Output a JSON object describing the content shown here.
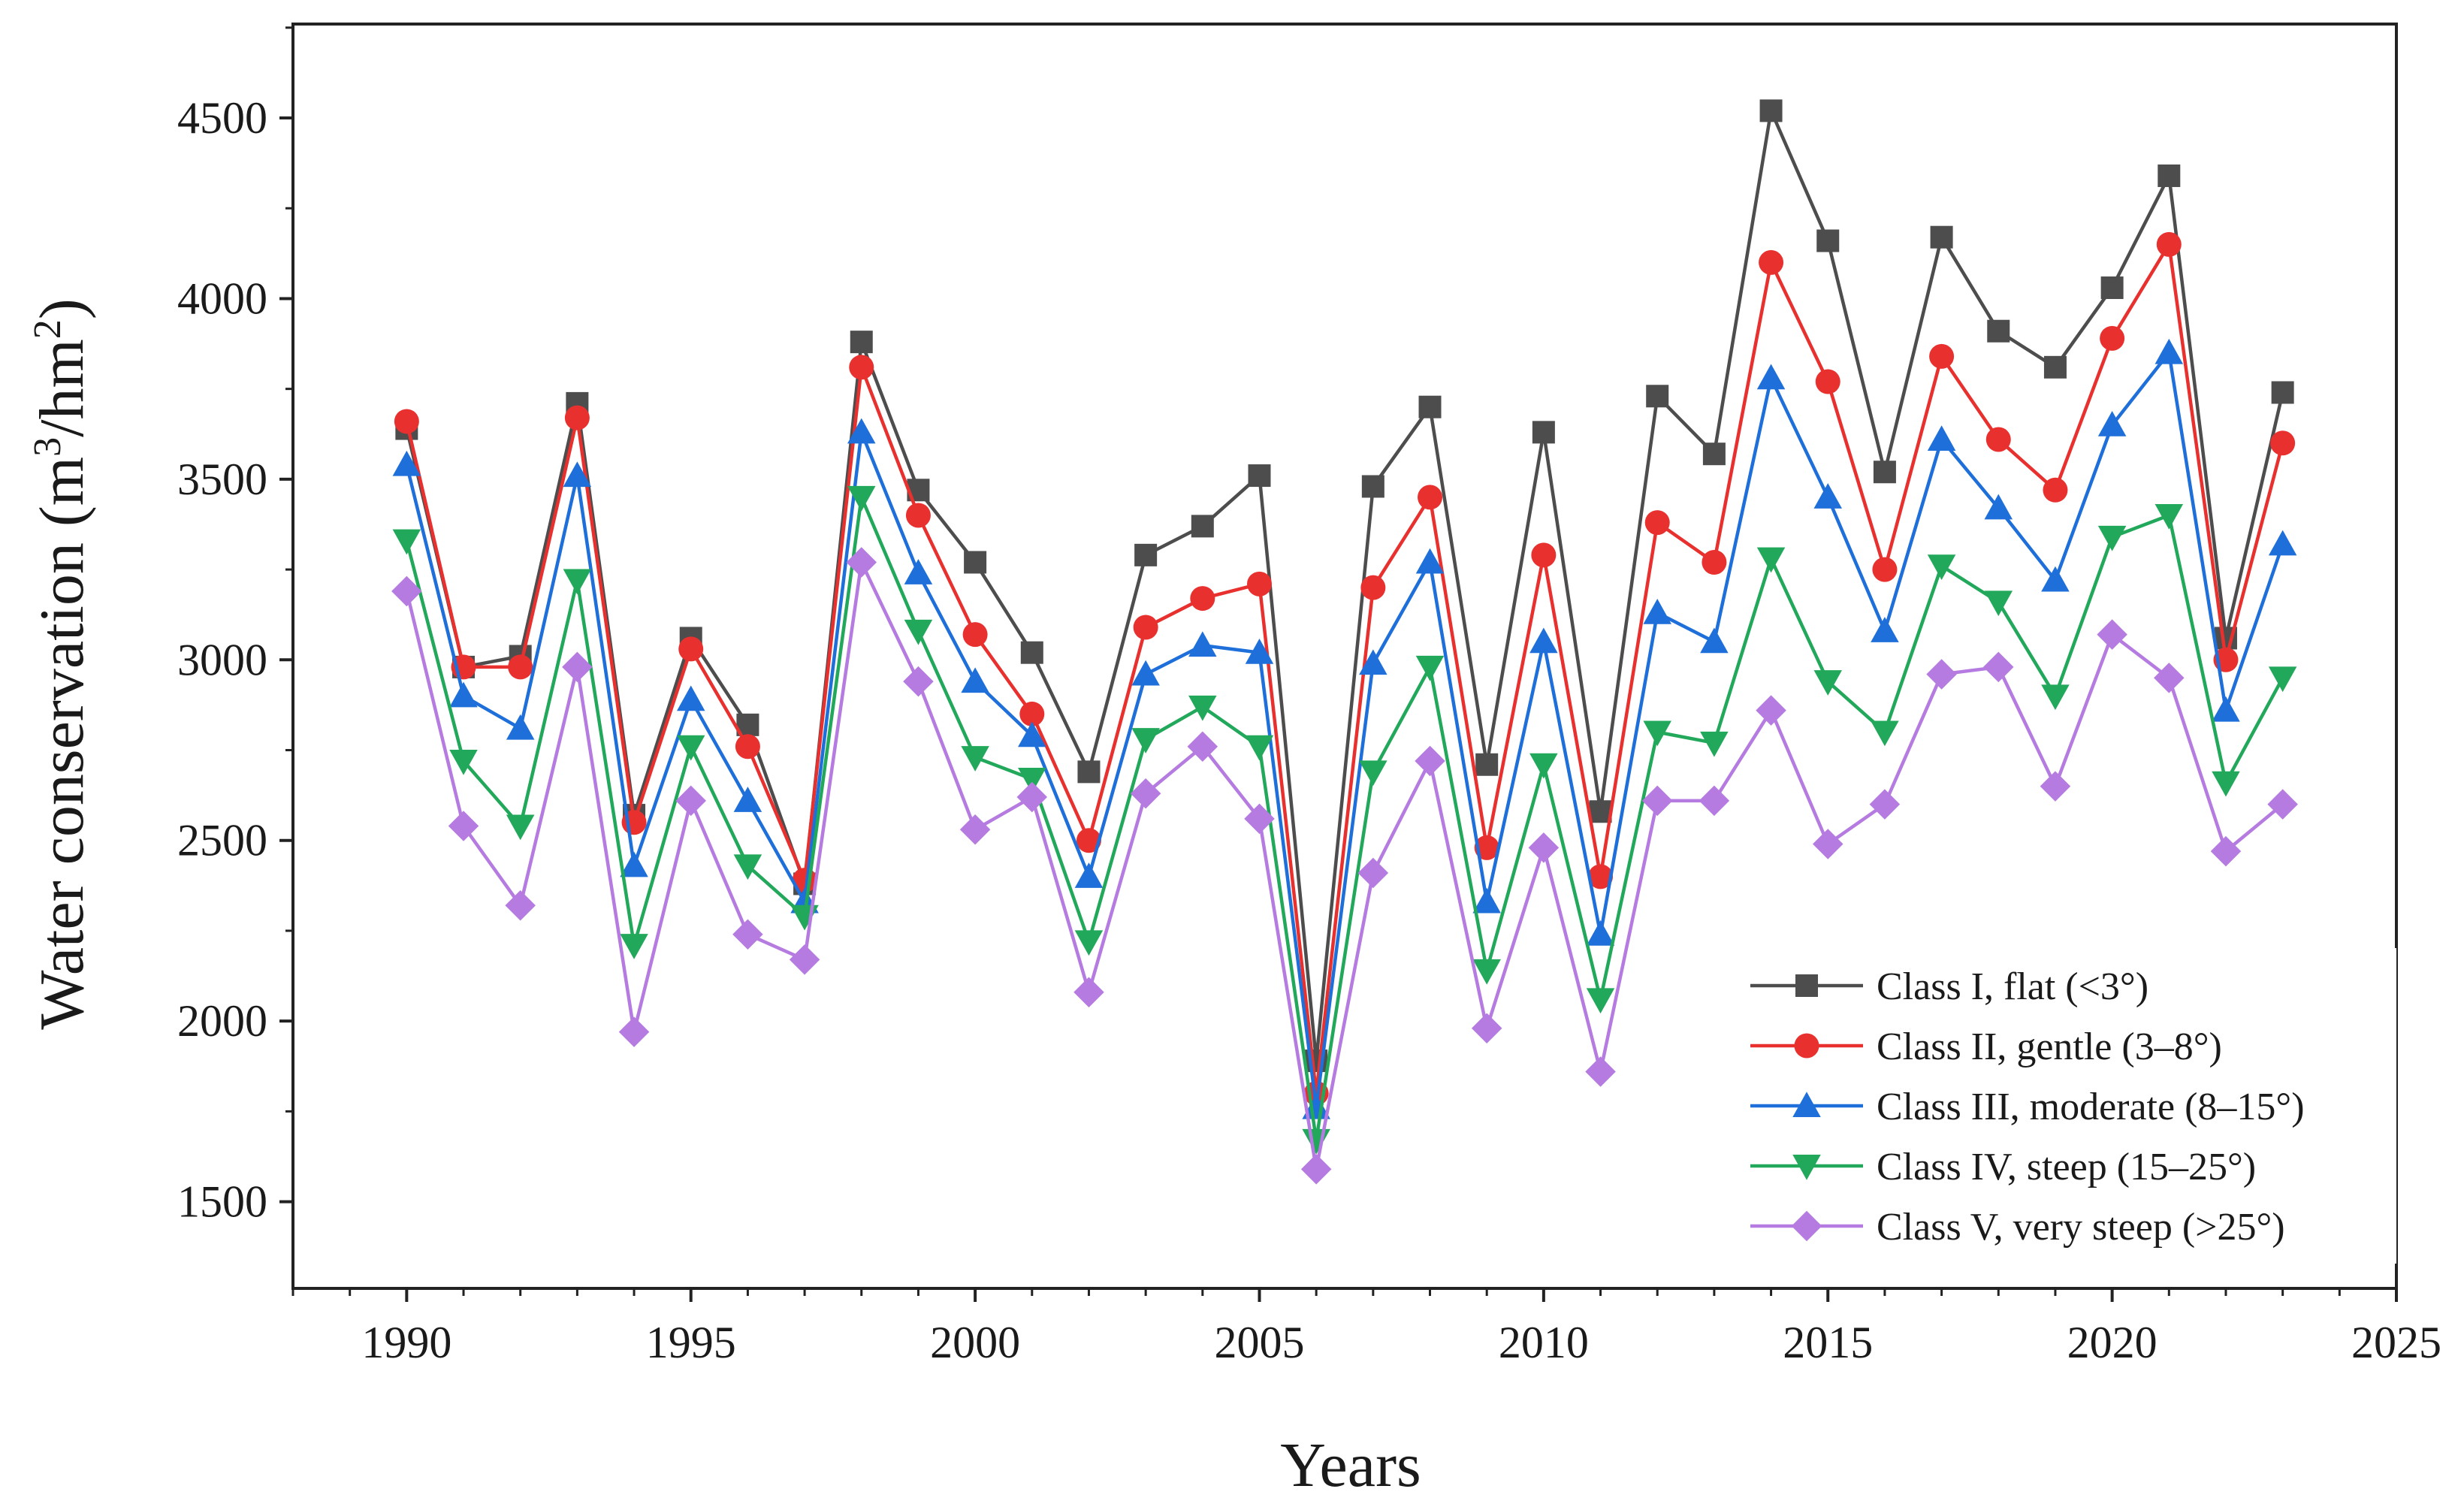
{
  "chart_data": {
    "type": "line",
    "title": "",
    "xlabel": "Years",
    "ylabel_prefix": "Water conservation (m",
    "ylabel_sup1": "3",
    "ylabel_mid": "/hm",
    "ylabel_sup2": "2",
    "ylabel_suffix": ")",
    "xlim": [
      1988,
      2025
    ],
    "ylim": [
      1260,
      4760
    ],
    "xticks": [
      1990,
      1995,
      2000,
      2005,
      2010,
      2015,
      2020,
      2025
    ],
    "yticks": [
      1500,
      2000,
      2500,
      3000,
      3500,
      4000,
      4500
    ],
    "legend_position": "bottom-right",
    "x": [
      1990,
      1991,
      1992,
      1993,
      1994,
      1995,
      1996,
      1997,
      1998,
      1999,
      2000,
      2001,
      2002,
      2003,
      2004,
      2005,
      2006,
      2007,
      2008,
      2009,
      2010,
      2011,
      2012,
      2013,
      2014,
      2015,
      2016,
      2017,
      2018,
      2019,
      2020,
      2021,
      2022,
      2023
    ],
    "series": [
      {
        "name": "Class I, flat (<3°)",
        "color": "#4d4d4d",
        "marker": "square",
        "values": [
          3640,
          2980,
          3010,
          3710,
          2570,
          3060,
          2820,
          2380,
          3880,
          3470,
          3270,
          3020,
          2690,
          3290,
          3370,
          3510,
          1890,
          3480,
          3700,
          2710,
          3630,
          2580,
          3730,
          3570,
          4520,
          4160,
          3520,
          4170,
          3910,
          3810,
          4030,
          4340,
          3060,
          3740
        ]
      },
      {
        "name": "Class II, gentle (3–8°)",
        "color": "#e8312f",
        "marker": "circle",
        "values": [
          3660,
          2980,
          2980,
          3670,
          2550,
          3030,
          2760,
          2390,
          3810,
          3400,
          3070,
          2850,
          2500,
          3090,
          3170,
          3210,
          1800,
          3200,
          3450,
          2480,
          3290,
          2400,
          3380,
          3270,
          4100,
          3770,
          3250,
          3840,
          3610,
          3470,
          3890,
          4150,
          3000,
          3600
        ]
      },
      {
        "name": "Class III, moderate (8–15°)",
        "color": "#1e6fd9",
        "marker": "triangle-up",
        "values": [
          3540,
          2900,
          2810,
          3510,
          2430,
          2890,
          2610,
          2330,
          3630,
          3240,
          2940,
          2790,
          2400,
          2960,
          3040,
          3020,
          1760,
          2990,
          3270,
          2330,
          3050,
          2240,
          3130,
          3050,
          3780,
          3450,
          3080,
          3610,
          3420,
          3220,
          3650,
          3850,
          2860,
          3320
        ]
      },
      {
        "name": "Class IV, steep (15–25°)",
        "color": "#22a85a",
        "marker": "triangle-down",
        "values": [
          3330,
          2720,
          2540,
          3220,
          2210,
          2760,
          2430,
          2290,
          3450,
          3080,
          2730,
          2670,
          2220,
          2780,
          2870,
          2760,
          1670,
          2690,
          2980,
          2140,
          2710,
          2060,
          2800,
          2770,
          3280,
          2940,
          2800,
          3260,
          3160,
          2900,
          3340,
          3400,
          2660,
          2950
        ]
      },
      {
        "name": "Class V, very steep (>25°)",
        "color": "#b57be0",
        "marker": "diamond",
        "values": [
          3190,
          2540,
          2320,
          2980,
          1970,
          2610,
          2240,
          2170,
          3270,
          2940,
          2530,
          2620,
          2080,
          2630,
          2760,
          2560,
          1590,
          2410,
          2720,
          1980,
          2480,
          1860,
          2610,
          2610,
          2860,
          2490,
          2600,
          2960,
          2980,
          2650,
          3070,
          2950,
          2470,
          2600
        ]
      }
    ]
  }
}
